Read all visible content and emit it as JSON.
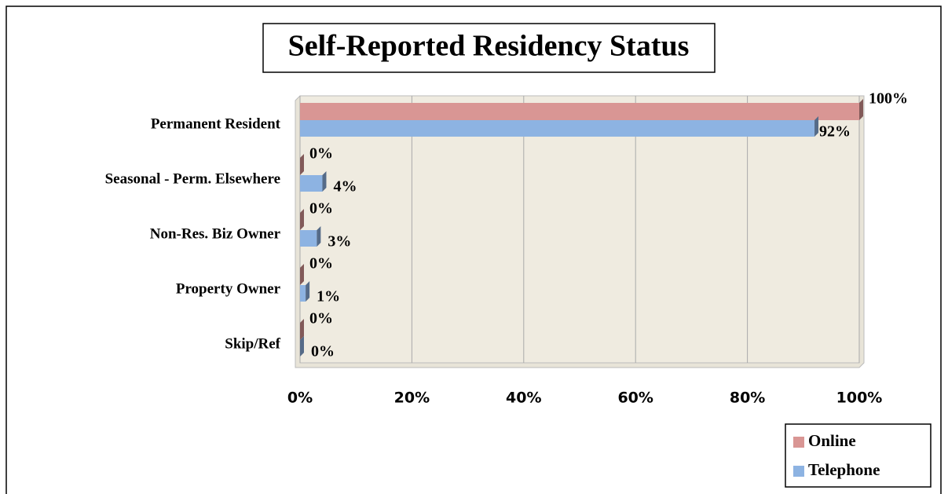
{
  "chart_data": {
    "type": "hbar",
    "title": "Self-Reported Residency Status",
    "categories": [
      "Permanent Resident",
      "Seasonal - Perm. Elsewhere",
      "Non-Res. Biz Owner",
      "Property Owner",
      "Skip/Ref"
    ],
    "series": [
      {
        "name": "Online",
        "color": "#d99694",
        "values": [
          100,
          0,
          0,
          0,
          0
        ],
        "value_labels": [
          "100%",
          "0%",
          "0%",
          "0%",
          "0%"
        ]
      },
      {
        "name": "Telephone",
        "color": "#8db3e2",
        "values": [
          92,
          4,
          3,
          1,
          0
        ],
        "value_labels": [
          "92%",
          "4%",
          "3%",
          "1%",
          "0%"
        ]
      }
    ],
    "xlim": [
      0,
      100
    ],
    "xticks": [
      {
        "value": 0,
        "label": "0%"
      },
      {
        "value": 20,
        "label": "20%"
      },
      {
        "value": 40,
        "label": "40%"
      },
      {
        "value": 60,
        "label": "60%"
      },
      {
        "value": 80,
        "label": "80%"
      },
      {
        "value": 100,
        "label": "100%"
      }
    ],
    "grid": true,
    "legend": "bottom-right"
  }
}
